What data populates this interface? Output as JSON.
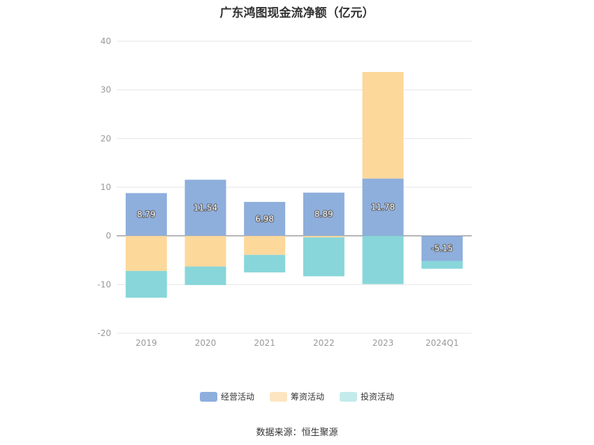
{
  "chart_data": {
    "type": "bar",
    "stacked": true,
    "title": "广东鸿图现金流净额（亿元）",
    "categories": [
      "2019",
      "2020",
      "2021",
      "2022",
      "2023",
      "2024Q1"
    ],
    "ylim": [
      -20,
      40
    ],
    "yticks": [
      40,
      30,
      20,
      10,
      0,
      -10,
      -20
    ],
    "grid": true,
    "legend_position": "bottom",
    "series": [
      {
        "name": "经营活动",
        "color": "#8eaedc",
        "values": [
          8.79,
          11.54,
          6.98,
          8.89,
          11.78,
          -5.15
        ],
        "labels": [
          "8.79",
          "11.54",
          "6.98",
          "8.89",
          "11.78",
          "-5.15"
        ]
      },
      {
        "name": "筹资活动",
        "color": "#fdd89b",
        "values": [
          -7.2,
          -6.3,
          -3.9,
          -0.3,
          21.9,
          0
        ]
      },
      {
        "name": "投资活动",
        "color": "#88d6da",
        "values": [
          -5.5,
          -3.8,
          -3.6,
          -8.0,
          -9.9,
          -1.6
        ]
      }
    ]
  },
  "legend": {
    "items": [
      {
        "label": "经营活动",
        "color": "#8eaedc"
      },
      {
        "label": "筹资活动",
        "color": "#fde5c2"
      },
      {
        "label": "投资活动",
        "color": "#c4ebeb"
      }
    ]
  },
  "source": "数据来源：恒生聚源"
}
